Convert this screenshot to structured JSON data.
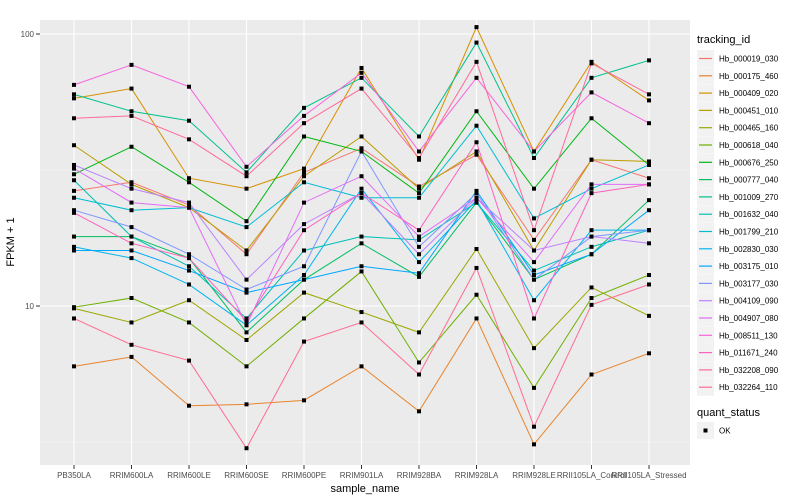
{
  "chart_data": {
    "type": "line",
    "title": "",
    "xlabel": "sample_name",
    "ylabel": "FPKM + 1",
    "yscale": "log10",
    "ylim": [
      2.5,
      120
    ],
    "y_ticks": [
      10,
      100
    ],
    "y_tick_labels": [
      "10",
      "100"
    ],
    "grid": true,
    "categories": [
      "PB350LA",
      "RRIM600LA",
      "RRIM600LE",
      "RRIM600SE",
      "RRIM600PE",
      "RRIM901LA",
      "RRIM928BA",
      "RRIM928LA",
      "RRIM928LE",
      "RRII105LA_Control",
      "RRII105LA_Stressed"
    ],
    "legend": {
      "title": "tracking_id",
      "position": "right"
    },
    "legend2": {
      "title": "quant_status",
      "entries": [
        "OK"
      ]
    },
    "series": [
      {
        "name": "Hb_000019_030",
        "color": "#F8766D",
        "values": [
          26.5,
          28.5,
          23.5,
          15.5,
          31,
          38,
          27.5,
          36,
          17.5,
          34.5,
          29.5
        ]
      },
      {
        "name": "Hb_000175_460",
        "color": "#E9842C",
        "values": [
          6.0,
          6.5,
          4.3,
          4.35,
          4.5,
          6.0,
          4.1,
          9.0,
          3.1,
          5.6,
          6.7
        ]
      },
      {
        "name": "Hb_000409_020",
        "color": "#D69100",
        "values": [
          58,
          63,
          29.5,
          27,
          32,
          75,
          34.5,
          106,
          37,
          79,
          57
        ]
      },
      {
        "name": "Hb_000451_010",
        "color": "#BC9D00",
        "values": [
          39,
          28,
          23,
          16,
          30,
          42,
          27,
          37,
          16,
          34.5,
          34
        ]
      },
      {
        "name": "Hb_000465_160",
        "color": "#9CA700",
        "values": [
          9.8,
          8.7,
          10.5,
          7.5,
          11.2,
          9.5,
          8.0,
          16.2,
          7.0,
          11.7,
          9.2
        ]
      },
      {
        "name": "Hb_000618_040",
        "color": "#6FB000",
        "values": [
          9.9,
          10.7,
          8.7,
          6.0,
          9.0,
          13.4,
          6.2,
          11.0,
          5.0,
          10.7,
          13.0
        ]
      },
      {
        "name": "Hb_000676_250",
        "color": "#00B813",
        "values": [
          30.5,
          38.5,
          28.5,
          20.5,
          42,
          37,
          26,
          52,
          27,
          49,
          33
        ]
      },
      {
        "name": "Hb_000777_040",
        "color": "#00BD61",
        "values": [
          18,
          18,
          15,
          8,
          12.5,
          17,
          12.8,
          24,
          12.5,
          15.5,
          24.5
        ]
      },
      {
        "name": "Hb_001009_270",
        "color": "#00C08E",
        "values": [
          60,
          52,
          48,
          31,
          53.5,
          69,
          42,
          93,
          35,
          69,
          80
        ]
      },
      {
        "name": "Hb_001632_040",
        "color": "#00C0B4",
        "values": [
          29,
          18,
          14,
          9,
          16,
          18,
          17.5,
          24,
          13.5,
          16.5,
          19
        ]
      },
      {
        "name": "Hb_001799_210",
        "color": "#00BDD4",
        "values": [
          25,
          22.5,
          23,
          19.5,
          28.5,
          25,
          25,
          46,
          21,
          27,
          33
        ]
      },
      {
        "name": "Hb_002830_030",
        "color": "#00B5EE",
        "values": [
          16.5,
          15,
          12,
          8.5,
          13,
          27,
          14.5,
          24.5,
          10.5,
          19,
          19
        ]
      },
      {
        "name": "Hb_003175_010",
        "color": "#00A7FF",
        "values": [
          16,
          16,
          13.5,
          11.2,
          12.5,
          14,
          13.2,
          26.5,
          13,
          15.5,
          22.5
        ]
      },
      {
        "name": "Hb_003177_030",
        "color": "#7F96FF",
        "values": [
          22.5,
          19.5,
          15.5,
          11.5,
          14,
          37,
          16.5,
          26,
          12.5,
          18,
          19
        ]
      },
      {
        "name": "Hb_004109_090",
        "color": "#BC81FF",
        "values": [
          33,
          27,
          24,
          12.5,
          20,
          26,
          15.5,
          25,
          16,
          18,
          17
        ]
      },
      {
        "name": "Hb_004907_080",
        "color": "#E26EF7",
        "values": [
          32,
          24,
          23,
          8.5,
          24,
          30,
          18,
          25,
          14.5,
          28,
          28
        ]
      },
      {
        "name": "Hb_008511_130",
        "color": "#F863DF",
        "values": [
          65,
          77,
          64,
          32.5,
          50,
          72,
          37,
          69,
          37,
          61,
          47
        ]
      },
      {
        "name": "Hb_011671_240",
        "color": "#FF62BF",
        "values": [
          22,
          17,
          15,
          8.8,
          19,
          26,
          19,
          40,
          9,
          26,
          28
        ]
      },
      {
        "name": "Hb_032208_090",
        "color": "#FF6A9A",
        "values": [
          49,
          50,
          41,
          30,
          47,
          63,
          35,
          79,
          19,
          78,
          60
        ]
      },
      {
        "name": "Hb_032264_110",
        "color": "#FF6C91",
        "values": [
          9.0,
          7.2,
          6.3,
          3.0,
          7.4,
          8.7,
          5.6,
          13.8,
          3.6,
          10.1,
          12.0
        ]
      }
    ]
  }
}
